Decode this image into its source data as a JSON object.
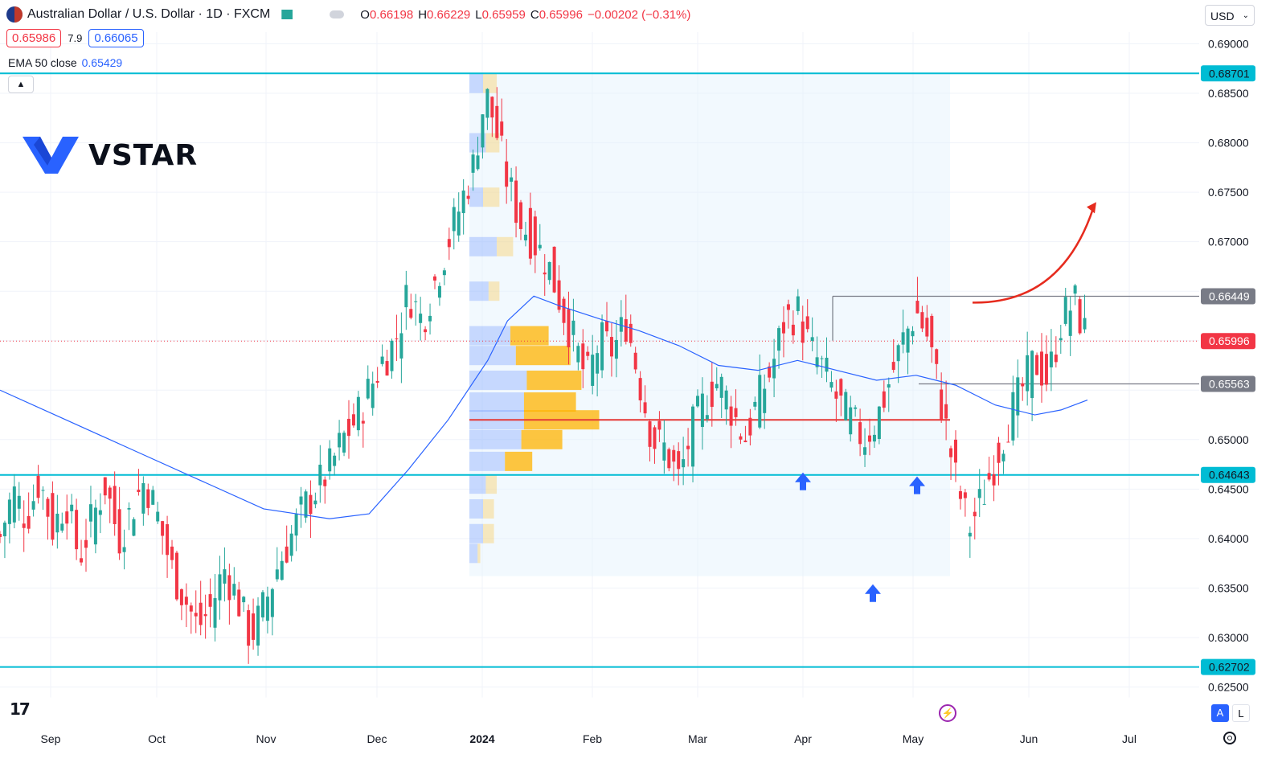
{
  "header": {
    "symbol_title": "Australian Dollar / U.S. Dollar · 1D · FXCM",
    "open_label": "O",
    "open": "0.66198",
    "high_label": "H",
    "high": "0.66229",
    "low_label": "L",
    "low": "0.65959",
    "close_label": "C",
    "close": "0.65996",
    "change": "−0.00202 (−0.31%)",
    "sell_price": "0.65986",
    "spread": "7.9",
    "buy_price": "0.66065",
    "ema_label": "EMA 50 close",
    "ema_value": "0.65429",
    "collapse_icon": "chevron-up-icon"
  },
  "currency_selector": {
    "value": "USD"
  },
  "brand": {
    "name": "VSTAR"
  },
  "bottom": {
    "btn_a": "A",
    "btn_l": "L",
    "tv_logo": "17"
  },
  "colors": {
    "up": "#26a69a",
    "down": "#f23645",
    "ema": "#2962ff",
    "level": "#00bcd4",
    "poc": "#e53935",
    "vp_up": "#2962ff",
    "vp_down": "#ffb300",
    "arrow_annot": "#e62b1e"
  },
  "chart_data": {
    "type": "candlestick",
    "symbol": "AUD/USD",
    "timeframe": "1D",
    "y_axis_ticks": [
      "0.69000",
      "0.68500",
      "0.68000",
      "0.67500",
      "0.67000",
      "0.65000",
      "0.64500",
      "0.64000",
      "0.63500",
      "0.63000",
      "0.62500"
    ],
    "ylim": [
      0.6215,
      0.6935
    ],
    "x_axis_ticks": [
      "Sep",
      "Oct",
      "Nov",
      "Dec",
      "2024",
      "Feb",
      "Mar",
      "Apr",
      "May",
      "Jun",
      "Jul"
    ],
    "price_labels": [
      {
        "value": "0.68701",
        "style": "level"
      },
      {
        "value": "0.66449",
        "style": "gray"
      },
      {
        "value": "0.65996",
        "style": "current"
      },
      {
        "value": "0.65563",
        "style": "gray"
      },
      {
        "value": "0.64643",
        "style": "level"
      },
      {
        "value": "0.62702",
        "style": "level"
      }
    ],
    "horizontal_levels": [
      0.68701,
      0.64643,
      0.62702
    ],
    "range_lines": [
      {
        "y": 0.66449,
        "from": "Apr",
        "to": "May"
      },
      {
        "y": 0.65563,
        "from": "May",
        "to": "May"
      }
    ],
    "current_price": 0.65996,
    "poc": 0.652,
    "volume_profile_range": [
      0.6362,
      0.687
    ],
    "annotations": [
      {
        "type": "up-arrow",
        "date": "Apr",
        "price": 0.6457
      },
      {
        "type": "up-arrow",
        "date": "May",
        "price": 0.6453
      },
      {
        "type": "up-arrow",
        "date": "Apr",
        "price": 0.6344
      },
      {
        "type": "curved-arrow",
        "from_price": 0.6645,
        "to_price": 0.674
      }
    ],
    "close_path": [
      [
        0,
        0.6402
      ],
      [
        4,
        0.6448
      ],
      [
        8,
        0.642
      ],
      [
        12,
        0.646
      ],
      [
        16,
        0.641
      ],
      [
        20,
        0.644
      ],
      [
        24,
        0.638
      ],
      [
        28,
        0.642
      ],
      [
        32,
        0.6455
      ],
      [
        36,
        0.64
      ],
      [
        40,
        0.643
      ],
      [
        44,
        0.646
      ],
      [
        48,
        0.642
      ],
      [
        52,
        0.637
      ],
      [
        56,
        0.634
      ],
      [
        60,
        0.631
      ],
      [
        64,
        0.633
      ],
      [
        68,
        0.637
      ],
      [
        72,
        0.634
      ],
      [
        76,
        0.63
      ],
      [
        80,
        0.633
      ],
      [
        84,
        0.637
      ],
      [
        88,
        0.64
      ],
      [
        92,
        0.643
      ],
      [
        96,
        0.645
      ],
      [
        100,
        0.647
      ],
      [
        104,
        0.65
      ],
      [
        108,
        0.652
      ],
      [
        112,
        0.655
      ],
      [
        116,
        0.658
      ],
      [
        120,
        0.66
      ],
      [
        124,
        0.665
      ],
      [
        128,
        0.662
      ],
      [
        132,
        0.666
      ],
      [
        136,
        0.67
      ],
      [
        140,
        0.674
      ],
      [
        144,
        0.678
      ],
      [
        146,
        0.683
      ],
      [
        148,
        0.6845
      ],
      [
        150,
        0.682
      ],
      [
        154,
        0.676
      ],
      [
        158,
        0.672
      ],
      [
        162,
        0.67
      ],
      [
        166,
        0.668
      ],
      [
        170,
        0.664
      ],
      [
        174,
        0.66
      ],
      [
        178,
        0.656
      ],
      [
        182,
        0.66
      ],
      [
        186,
        0.659
      ],
      [
        190,
        0.662
      ],
      [
        194,
        0.656
      ],
      [
        198,
        0.65
      ],
      [
        202,
        0.649
      ],
      [
        206,
        0.646
      ],
      [
        210,
        0.651
      ],
      [
        214,
        0.654
      ],
      [
        218,
        0.656
      ],
      [
        222,
        0.653
      ],
      [
        226,
        0.65
      ],
      [
        230,
        0.654
      ],
      [
        234,
        0.657
      ],
      [
        238,
        0.662
      ],
      [
        242,
        0.663
      ],
      [
        246,
        0.659
      ],
      [
        250,
        0.657
      ],
      [
        254,
        0.654
      ],
      [
        258,
        0.652
      ],
      [
        262,
        0.65
      ],
      [
        266,
        0.652
      ],
      [
        270,
        0.656
      ],
      [
        274,
        0.66
      ],
      [
        278,
        0.663
      ],
      [
        282,
        0.66
      ],
      [
        286,
        0.653
      ],
      [
        290,
        0.646
      ],
      [
        294,
        0.641
      ],
      [
        298,
        0.644
      ],
      [
        302,
        0.648
      ],
      [
        306,
        0.652
      ],
      [
        310,
        0.655
      ],
      [
        314,
        0.658
      ],
      [
        318,
        0.656
      ],
      [
        322,
        0.662
      ],
      [
        326,
        0.664
      ],
      [
        330,
        0.66
      ]
    ],
    "ema_path": [
      [
        0,
        0.655
      ],
      [
        20,
        0.652
      ],
      [
        40,
        0.649
      ],
      [
        60,
        0.646
      ],
      [
        80,
        0.643
      ],
      [
        100,
        0.642
      ],
      [
        112,
        0.6425
      ],
      [
        124,
        0.647
      ],
      [
        136,
        0.652
      ],
      [
        148,
        0.658
      ],
      [
        154,
        0.662
      ],
      [
        162,
        0.6645
      ],
      [
        170,
        0.6635
      ],
      [
        182,
        0.6622
      ],
      [
        194,
        0.661
      ],
      [
        206,
        0.6595
      ],
      [
        218,
        0.6575
      ],
      [
        230,
        0.657
      ],
      [
        242,
        0.658
      ],
      [
        254,
        0.657
      ],
      [
        266,
        0.656
      ],
      [
        278,
        0.6565
      ],
      [
        290,
        0.6555
      ],
      [
        302,
        0.6535
      ],
      [
        314,
        0.6525
      ],
      [
        322,
        0.653
      ],
      [
        330,
        0.654
      ]
    ],
    "volume_profile": [
      [
        0.686,
        0.1,
        0.1
      ],
      [
        0.68,
        0.12,
        0.1
      ],
      [
        0.6745,
        0.1,
        0.12
      ],
      [
        0.6695,
        0.2,
        0.12
      ],
      [
        0.665,
        0.14,
        0.08
      ],
      [
        0.6605,
        0.3,
        0.28
      ],
      [
        0.6585,
        0.34,
        0.4
      ],
      [
        0.656,
        0.42,
        0.4
      ],
      [
        0.6538,
        0.4,
        0.38
      ],
      [
        0.652,
        0.4,
        0.55
      ],
      [
        0.65,
        0.38,
        0.3
      ],
      [
        0.6478,
        0.26,
        0.2
      ],
      [
        0.6455,
        0.12,
        0.08
      ],
      [
        0.643,
        0.1,
        0.08
      ],
      [
        0.6405,
        0.1,
        0.08
      ],
      [
        0.6385,
        0.06,
        0.02
      ]
    ]
  }
}
